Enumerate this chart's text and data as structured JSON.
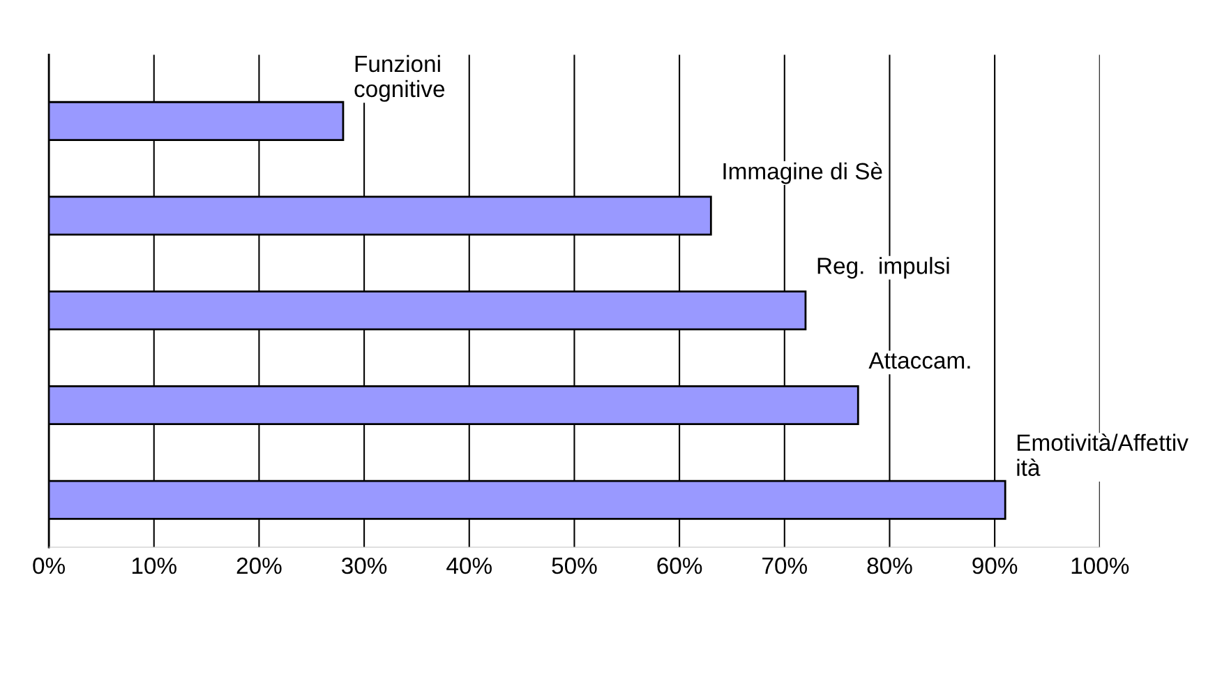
{
  "chart_data": {
    "type": "bar",
    "orientation": "horizontal",
    "categories": [
      "Funzioni\ncognitive",
      "Immagine di Sè",
      "Reg.  impulsi",
      "Attaccam.",
      "Emotività/Affettiv\nità"
    ],
    "values": [
      28,
      63,
      72,
      77,
      91
    ],
    "color": "#9999ff",
    "xlim": [
      0,
      100
    ],
    "xticks": [
      {
        "value": 0,
        "label": "0%"
      },
      {
        "value": 10,
        "label": "10%"
      },
      {
        "value": 20,
        "label": "20%"
      },
      {
        "value": 30,
        "label": "30%"
      },
      {
        "value": 40,
        "label": "40%"
      },
      {
        "value": 50,
        "label": "50%"
      },
      {
        "value": 60,
        "label": "60%"
      },
      {
        "value": 70,
        "label": "70%"
      },
      {
        "value": 80,
        "label": "80%"
      },
      {
        "value": 90,
        "label": "90%"
      },
      {
        "value": 100,
        "label": "100%"
      }
    ],
    "grid": "x",
    "tick_labels": "x",
    "legend": false
  }
}
